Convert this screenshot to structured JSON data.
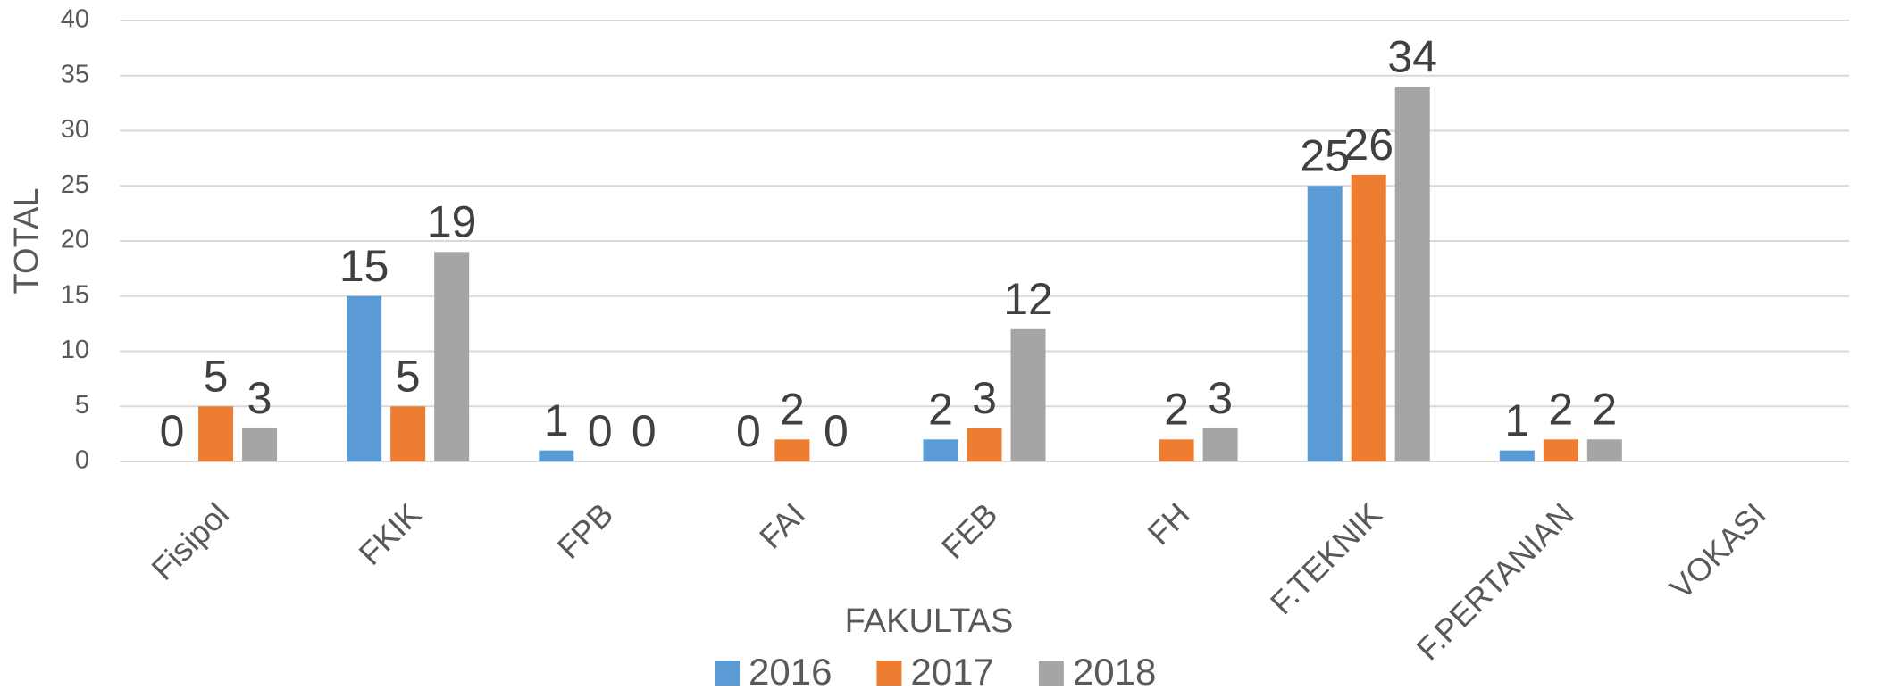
{
  "chart_data": {
    "type": "bar",
    "categories": [
      "Fisipol",
      "FKIK",
      "FPB",
      "FAI",
      "FEB",
      "FH",
      "F.TEKNIK",
      "F.PERTANIAN",
      "VOKASI"
    ],
    "series": [
      {
        "name": "2016",
        "color": "#5b9bd5",
        "values": [
          0,
          15,
          1,
          0,
          2,
          null,
          25,
          1,
          null
        ]
      },
      {
        "name": "2017",
        "color": "#ed7d31",
        "values": [
          5,
          5,
          0,
          2,
          3,
          2,
          26,
          2,
          null
        ]
      },
      {
        "name": "2018",
        "color": "#a5a5a5",
        "values": [
          3,
          19,
          0,
          0,
          12,
          3,
          34,
          2,
          null
        ]
      }
    ],
    "xlabel": "FAKULTAS",
    "ylabel": "TOTAL",
    "ylim": [
      0,
      40
    ],
    "yticks": [
      0,
      5,
      10,
      15,
      20,
      25,
      30,
      35,
      40
    ],
    "grid": true,
    "legend": "bottom"
  }
}
